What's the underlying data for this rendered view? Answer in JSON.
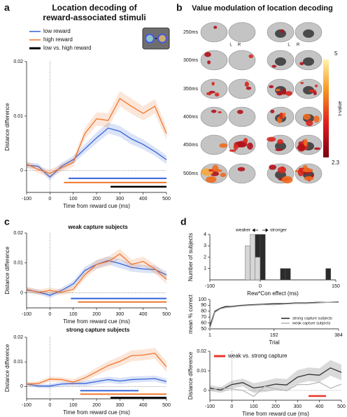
{
  "chart_data": [
    {
      "type": "line",
      "panel": "a",
      "title_lines": [
        "Location decoding of",
        "reward-associated stimuli"
      ],
      "xlabel": "Time from reward cue (ms)",
      "ylabel": "Distance difference",
      "x": [
        -100,
        -50,
        0,
        50,
        100,
        150,
        200,
        250,
        300,
        350,
        400,
        450,
        500
      ],
      "xlim": [
        -100,
        500
      ],
      "xticks": [
        -100,
        0,
        100,
        200,
        300,
        400,
        500
      ],
      "ylim": [
        -0.004,
        0.02
      ],
      "yticks": [
        0,
        0.01,
        0.02
      ],
      "series": [
        {
          "name": "low reward",
          "color": "#3563d6",
          "values": [
            0.001,
            0.0008,
            -0.0012,
            0.0008,
            0.002,
            0.004,
            0.006,
            0.0078,
            0.0072,
            0.0058,
            0.0048,
            0.0035,
            0.002
          ],
          "errors": [
            0.0005,
            0.0005,
            0.0006,
            0.0006,
            0.0007,
            0.0008,
            0.001,
            0.001,
            0.001,
            0.001,
            0.0009,
            0.0008,
            0.0008
          ],
          "sig": [
            80,
            500
          ]
        },
        {
          "name": "high reward",
          "color": "#f0772e",
          "values": [
            0.0012,
            0.0002,
            -0.0005,
            0.0005,
            0.0015,
            0.0068,
            0.0095,
            0.0092,
            0.0132,
            0.0118,
            0.0105,
            0.0118,
            0.0068
          ],
          "errors": [
            0.0006,
            0.0006,
            0.0007,
            0.0007,
            0.0008,
            0.001,
            0.0012,
            0.0013,
            0.0014,
            0.0014,
            0.0013,
            0.0013,
            0.0012
          ],
          "sig": [
            60,
            500
          ]
        },
        {
          "name": "low vs. high reward",
          "color": "#000000",
          "sig": [
            260,
            500
          ]
        }
      ]
    },
    {
      "type": "line",
      "panel": "c",
      "title": "weak capture subjects",
      "xlabel": "Time from reward cue (ms)",
      "ylabel": "Distance difference",
      "x": [
        -100,
        -50,
        0,
        50,
        100,
        150,
        200,
        250,
        300,
        350,
        400,
        450,
        500
      ],
      "xlim": [
        -100,
        500
      ],
      "xticks": [
        -100,
        0,
        100,
        200,
        300,
        400,
        500
      ],
      "ylim": [
        -0.005,
        0.02
      ],
      "yticks": [
        0,
        0.01,
        0.02
      ],
      "series": [
        {
          "color": "#3563d6",
          "values": [
            0.001,
            0.0003,
            -0.0008,
            0.0008,
            0.003,
            0.0075,
            0.0095,
            0.0108,
            0.0098,
            0.0085,
            0.008,
            0.0078,
            0.006
          ],
          "errors": [
            0.0008,
            0.0008,
            0.0009,
            0.0009,
            0.001,
            0.0012,
            0.0014,
            0.0014,
            0.0015,
            0.0014,
            0.0013,
            0.0013,
            0.0012
          ],
          "sig": [
            90,
            500
          ]
        },
        {
          "color": "#f0772e",
          "values": [
            0.0012,
            0.0002,
            0.0008,
            0.0002,
            0.0012,
            0.006,
            0.0095,
            0.0105,
            0.013,
            0.0095,
            0.0105,
            0.008,
            0.0045
          ],
          "errors": [
            0.0009,
            0.0009,
            0.001,
            0.001,
            0.0011,
            0.0013,
            0.0015,
            0.0016,
            0.0017,
            0.0016,
            0.0016,
            0.0015,
            0.0015
          ],
          "sig": [
            120,
            500
          ]
        }
      ]
    },
    {
      "type": "line",
      "title": "strong capture subjects",
      "xlabel": "Time from reward cue (ms)",
      "ylabel": "Distance difference",
      "x": [
        -100,
        -50,
        0,
        50,
        100,
        150,
        200,
        250,
        300,
        350,
        400,
        450,
        500
      ],
      "xlim": [
        -100,
        500
      ],
      "xticks": [
        -100,
        0,
        100,
        200,
        300,
        400,
        500
      ],
      "ylim": [
        -0.005,
        0.02
      ],
      "yticks": [
        0,
        0.01,
        0.02
      ],
      "series": [
        {
          "color": "#3563d6",
          "values": [
            0.001,
            0.0002,
            0.0002,
            0.001,
            0.0012,
            0.0012,
            0.002,
            0.0028,
            0.0022,
            0.0028,
            0.003,
            0.0032,
            0.002
          ],
          "errors": [
            0.0008,
            0.0008,
            0.0009,
            0.0009,
            0.001,
            0.0011,
            0.0012,
            0.0012,
            0.0013,
            0.0013,
            0.0012,
            0.0012,
            0.0012
          ],
          "sig": [
            130,
            380
          ]
        },
        {
          "color": "#f0772e",
          "values": [
            0.001,
            0.0012,
            0.003,
            0.0028,
            0.0018,
            0.0035,
            0.006,
            0.0085,
            0.0102,
            0.0125,
            0.0128,
            0.0135,
            0.008
          ],
          "errors": [
            0.0009,
            0.0009,
            0.001,
            0.001,
            0.0012,
            0.0014,
            0.0016,
            0.0018,
            0.002,
            0.0022,
            0.0022,
            0.0022,
            0.0022
          ],
          "sig": [
            130,
            500
          ]
        },
        {
          "color": "#000000",
          "sig": [
            260,
            500
          ]
        }
      ]
    },
    {
      "type": "histogram",
      "panel": "d",
      "xlabel": "Rew*Con effect (ms)",
      "ylabel": "Number of subjects",
      "annotations": [
        "weaker",
        "stronger"
      ],
      "bins": [
        -30,
        -20,
        -10,
        0,
        10,
        20,
        30,
        40,
        50,
        60,
        70,
        80,
        90,
        100,
        110,
        120,
        130,
        140
      ],
      "xlim": [
        -100,
        150
      ],
      "xticks": [
        -100,
        0,
        150
      ],
      "ylim": [
        0,
        4
      ],
      "yticks": [
        1,
        2,
        3,
        4
      ],
      "series": [
        {
          "color": "#d6d6d6",
          "values": [
            3,
            4,
            2,
            0,
            0,
            0,
            0,
            0,
            0,
            0,
            0,
            0,
            0,
            0,
            0,
            0,
            0
          ]
        },
        {
          "color": "#2b2b2b",
          "values": [
            0,
            0,
            2,
            4,
            0,
            0,
            0,
            1,
            1,
            0,
            0,
            0,
            0,
            0,
            0,
            0,
            1
          ]
        }
      ]
    },
    {
      "type": "line",
      "xlabel": "Trial",
      "ylabel": "mean % correct",
      "x": [
        1,
        16,
        32,
        48,
        64,
        96,
        128,
        160,
        192,
        224,
        256,
        288,
        320,
        352,
        384
      ],
      "xlim": [
        1,
        384
      ],
      "xticks": [
        1,
        192,
        384
      ],
      "ylim": [
        50,
        100
      ],
      "yticks": [
        50,
        60,
        70,
        80,
        90,
        100
      ],
      "series": [
        {
          "name": "strong capture subjects",
          "color": "#222222",
          "values": [
            55,
            80,
            85,
            88,
            88,
            90,
            91,
            92,
            93,
            93,
            94,
            94,
            95,
            95,
            96
          ]
        },
        {
          "name": "weak capture subjects",
          "color": "#b0b0b0",
          "values": [
            50,
            78,
            84,
            86,
            87,
            89,
            90,
            91,
            91,
            92,
            93,
            93,
            94,
            95,
            95
          ]
        }
      ]
    },
    {
      "type": "line",
      "xlabel": "Time from reward cue (ms)",
      "ylabel": "Distance difference",
      "x": [
        -100,
        -50,
        0,
        50,
        100,
        150,
        200,
        250,
        300,
        350,
        400,
        450,
        500
      ],
      "xlim": [
        -100,
        500
      ],
      "xticks": [
        -100,
        0,
        100,
        200,
        300,
        400,
        500
      ],
      "ylim": [
        -0.005,
        0.02
      ],
      "yticks": [
        0,
        0.01,
        0.02
      ],
      "series": [
        {
          "color": "#333333",
          "values": [
            0.0012,
            0.0002,
            0.003,
            0.004,
            0.0012,
            0.002,
            0.0032,
            0.0028,
            0.0068,
            0.0082,
            0.0078,
            0.0115,
            0.0092
          ],
          "errors": [
            0.0015,
            0.0015,
            0.002,
            0.002,
            0.0025,
            0.0028,
            0.003,
            0.003,
            0.0035,
            0.0035,
            0.0035,
            0.004,
            0.004
          ]
        },
        {
          "color": "#b8b8b8",
          "values": [
            0.0002,
            0.0012,
            0.0008,
            0,
            -0.003,
            0.002,
            0.0008,
            -0.0002,
            0.003,
            0.003,
            0.0042,
            0.001,
            0.0032
          ]
        },
        {
          "name": "weak vs. strong capture",
          "color": "#e8352b",
          "sig": [
            350,
            430
          ]
        }
      ]
    }
  ],
  "panel_b": {
    "panel": "b",
    "title": "Value modulation of location decoding",
    "times": [
      "250ms",
      "300ms",
      "350ms",
      "400ms",
      "450ms",
      "500ms"
    ],
    "hemisphere_labels": [
      "L",
      "R",
      "L",
      "R"
    ],
    "colorbar": {
      "label": "t-value",
      "max": 5,
      "min": 2.3
    }
  }
}
